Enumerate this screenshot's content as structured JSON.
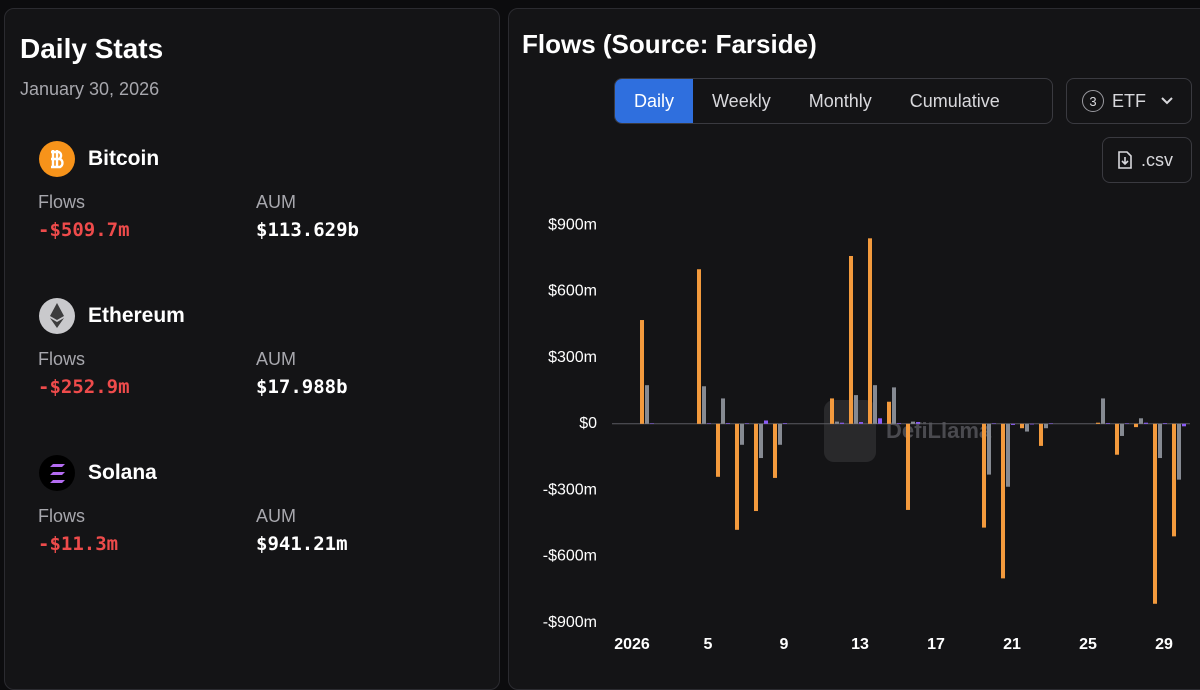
{
  "stats": {
    "title": "Daily Stats",
    "date": "January 30, 2026",
    "assets": [
      {
        "name": "Bitcoin",
        "flows_label": "Flows",
        "flows": "-$509.7m",
        "aum_label": "AUM",
        "aum": "$113.629b"
      },
      {
        "name": "Ethereum",
        "flows_label": "Flows",
        "flows": "-$252.9m",
        "aum_label": "AUM",
        "aum": "$17.988b"
      },
      {
        "name": "Solana",
        "flows_label": "Flows",
        "flows": "-$11.3m",
        "aum_label": "AUM",
        "aum": "$941.21m"
      }
    ]
  },
  "controls": {
    "tabs": [
      "Daily",
      "Weekly",
      "Monthly",
      "Cumulative"
    ],
    "active_tab": 0,
    "etf_count": "3",
    "etf_label": "ETF",
    "csv_label": ".csv"
  },
  "watermark": "DefiLlama",
  "chart_data": {
    "type": "bar",
    "title": "Flows (Source: Farside)",
    "categories": [
      "2026",
      null,
      null,
      null,
      "5",
      null,
      null,
      null,
      "9",
      null,
      null,
      null,
      "13",
      null,
      null,
      null,
      "17",
      null,
      null,
      null,
      "21",
      null,
      null,
      null,
      "25",
      null,
      null,
      null,
      "29",
      null
    ],
    "series": [
      {
        "name": "Bitcoin",
        "color": "#f39a3d",
        "values": [
          null,
          470,
          null,
          null,
          700,
          -240,
          -480,
          -395,
          -245,
          null,
          null,
          115,
          760,
          840,
          100,
          -390,
          null,
          null,
          null,
          -470,
          -700,
          -20,
          -100,
          null,
          null,
          5,
          -140,
          -15,
          -815,
          -509.7
        ]
      },
      {
        "name": "Ethereum",
        "color": "#868a92",
        "values": [
          null,
          175,
          null,
          null,
          170,
          115,
          -95,
          -155,
          -95,
          null,
          null,
          10,
          130,
          175,
          165,
          10,
          null,
          null,
          null,
          -230,
          -285,
          -35,
          -20,
          null,
          null,
          115,
          -55,
          25,
          -155,
          -252.9
        ]
      },
      {
        "name": "Solana",
        "color": "#8b5cf6",
        "values": [
          null,
          2,
          null,
          null,
          2,
          3,
          2,
          15,
          3,
          null,
          null,
          5,
          8,
          25,
          3,
          8,
          null,
          null,
          null,
          2,
          -5,
          -3,
          2,
          null,
          null,
          3,
          2,
          5,
          3,
          -11.3
        ]
      }
    ],
    "ylim": [
      -970,
      1000
    ],
    "yticks": [
      {
        "value": -900,
        "label": "-$900m"
      },
      {
        "value": -600,
        "label": "-$600m"
      },
      {
        "value": -300,
        "label": "-$300m"
      },
      {
        "value": 0,
        "label": "$0"
      },
      {
        "value": 300,
        "label": "$300m"
      },
      {
        "value": 600,
        "label": "$600m"
      },
      {
        "value": 900,
        "label": "$900m"
      }
    ]
  }
}
